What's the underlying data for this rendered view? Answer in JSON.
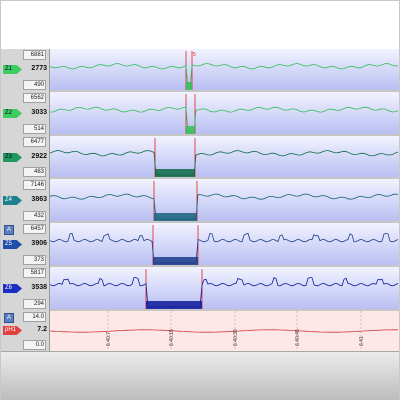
{
  "channels": [
    {
      "label": "Z1",
      "max": "6881",
      "value": "2773",
      "min": "490",
      "color": "#2fbf55",
      "tag_color": "#3dcc60",
      "has_a": false
    },
    {
      "label": "Z2",
      "max": "6562",
      "value": "3033",
      "min": "514",
      "color": "#2fbf55",
      "tag_color": "#3dcc60",
      "has_a": false
    },
    {
      "label": "Z3",
      "max": "6477",
      "value": "2922",
      "min": "483",
      "color": "#0c6b44",
      "tag_color": "#1e9a5c",
      "has_a": false
    },
    {
      "label": "Z4",
      "max": "7146",
      "value": "3863",
      "min": "432",
      "color": "#19627a",
      "tag_color": "#1e7f8e",
      "has_a": false
    },
    {
      "label": "Z5",
      "max": "6457",
      "value": "3906",
      "min": "373",
      "color": "#1b3c88",
      "tag_color": "#1f4fa8",
      "has_a": true
    },
    {
      "label": "Z6",
      "max": "5817",
      "value": "3538",
      "min": "294",
      "color": "#0d1a9a",
      "tag_color": "#1a2ec0",
      "has_a": false
    }
  ],
  "ph_channel": {
    "label": "pH1",
    "max": "14.0",
    "value": "7.2",
    "min": "0.0",
    "color": "#d23a3a",
    "tag_color": "#e04040",
    "has_a": true
  },
  "a_button": "A",
  "time_ticks": [
    "6:40:7",
    "6:40:15",
    "6:40:30",
    "6:40:45",
    "6:41"
  ],
  "marker_label": "5",
  "colors": {
    "background_grad_top": "#f2f3ff",
    "background_grad_bottom": "#b9bff2",
    "ph_background": "#fde7e7",
    "event_marker": "#e32020"
  }
}
